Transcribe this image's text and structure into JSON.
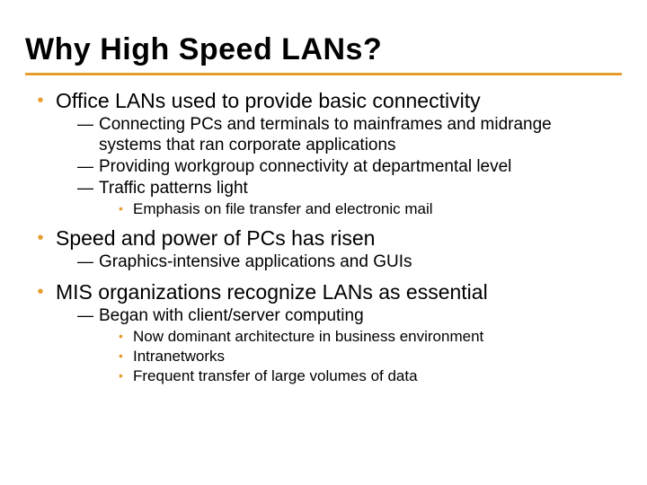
{
  "colors": {
    "accent": "#e79c2f",
    "text": "#000000",
    "background": "#ffffff"
  },
  "typography": {
    "title_fontsize": 34,
    "level1_fontsize": 23,
    "level2_fontsize": 19,
    "level3_fontsize": 17,
    "title_family": "Arial Black",
    "body_family": "Verdana"
  },
  "slide": {
    "title": "Why High Speed LANs?",
    "items": [
      {
        "text": "Office LANs used to provide basic connectivity",
        "sub": [
          {
            "text": "Connecting PCs and terminals to mainframes and midrange systems that ran corporate applications"
          },
          {
            "text": "Providing workgroup connectivity at departmental level"
          },
          {
            "text": "Traffic patterns light",
            "sub": [
              {
                "text": "Emphasis on file transfer and electronic mail"
              }
            ]
          }
        ]
      },
      {
        "text": "Speed and power of PCs has risen",
        "sub": [
          {
            "text": "Graphics-intensive applications and GUIs"
          }
        ]
      },
      {
        "text": "MIS organizations recognize LANs as essential",
        "sub": [
          {
            "text": "Began with client/server computing",
            "sub": [
              {
                "text": "Now dominant architecture in business environment"
              },
              {
                "text": "Intranetworks"
              },
              {
                "text": "Frequent transfer of large volumes of data"
              }
            ]
          }
        ]
      }
    ]
  },
  "bullets": {
    "level1": "•",
    "level2": "—",
    "level3": "•"
  }
}
